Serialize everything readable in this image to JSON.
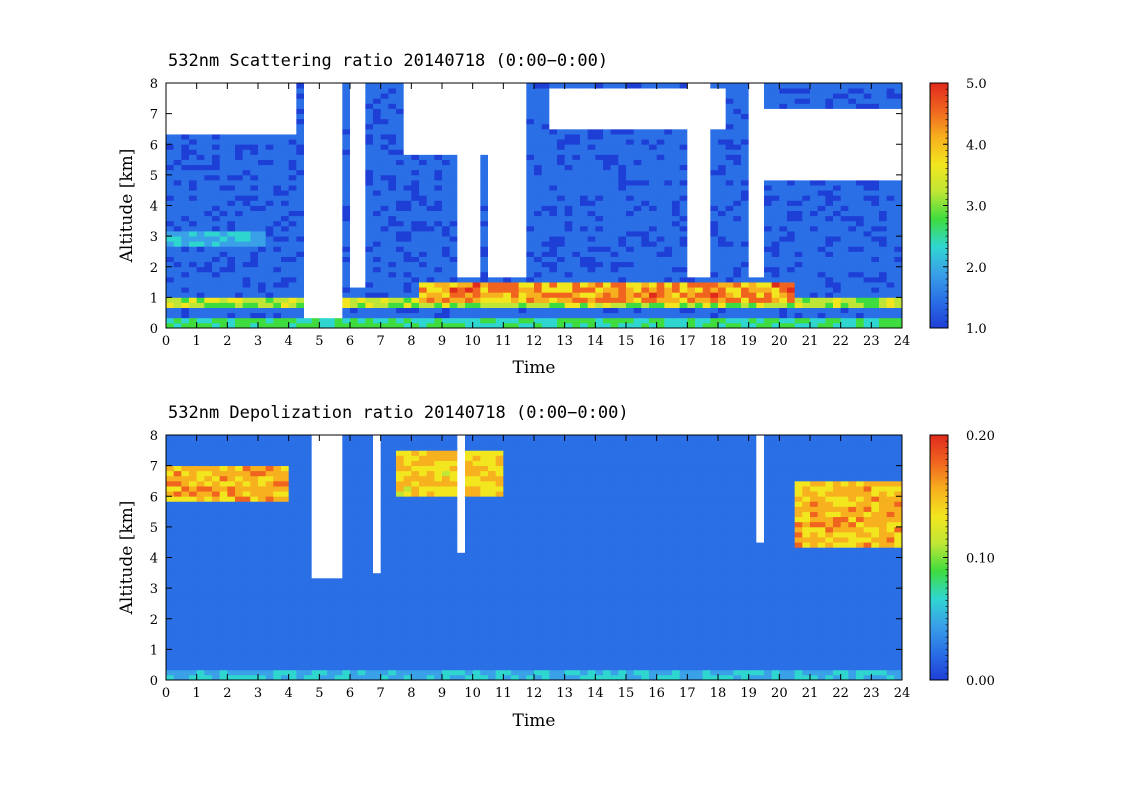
{
  "chart_data": [
    {
      "type": "heatmap",
      "title": "532nm Scattering ratio  20140718 (0:00−0:00)",
      "xlabel": "Time",
      "ylabel": "Altitude [km]",
      "xlim": [
        0,
        24
      ],
      "ylim": [
        0,
        8
      ],
      "x_ticks": [
        "0",
        "1",
        "2",
        "3",
        "4",
        "5",
        "6",
        "7",
        "8",
        "9",
        "10",
        "11",
        "12",
        "13",
        "14",
        "15",
        "16",
        "17",
        "18",
        "19",
        "20",
        "21",
        "22",
        "23",
        "24"
      ],
      "y_ticks": [
        "0",
        "1",
        "2",
        "3",
        "4",
        "5",
        "6",
        "7",
        "8"
      ],
      "colorbar": {
        "min": 1.0,
        "max": 5.0,
        "tick_labels": [
          "1.0",
          "2.0",
          "3.0",
          "4.0",
          "5.0"
        ],
        "tick_values": [
          1.0,
          2.0,
          3.0,
          4.0,
          5.0
        ]
      },
      "background_value": 1.3,
      "features": [
        {
          "kind": "layer",
          "t": [
            0,
            24
          ],
          "z": [
            0.65,
            1.0
          ],
          "value": 3.2
        },
        {
          "kind": "layer",
          "t": [
            8.2,
            20.5
          ],
          "z": [
            0.8,
            1.5
          ],
          "value": 4.2
        },
        {
          "kind": "layer",
          "t": [
            0,
            3.2
          ],
          "z": [
            2.7,
            3.1
          ],
          "value": 2.0
        },
        {
          "kind": "layer",
          "t": [
            0,
            24
          ],
          "z": [
            0.05,
            0.35
          ],
          "value": 2.6
        },
        {
          "kind": "cloud_top",
          "t": [
            0,
            4.2
          ],
          "z": [
            6.4,
            8
          ]
        },
        {
          "kind": "cloud_top",
          "t": [
            7.8,
            11.8
          ],
          "z": [
            5.6,
            8
          ]
        },
        {
          "kind": "cloud_top",
          "t": [
            12.5,
            18.3
          ],
          "z": [
            6.5,
            7.9
          ]
        },
        {
          "kind": "cloud_top",
          "t": [
            19.5,
            24
          ],
          "z": [
            4.8,
            7.2
          ]
        },
        {
          "kind": "no_signal",
          "t": [
            4.6,
            5.8
          ],
          "z": [
            0.3,
            8
          ]
        },
        {
          "kind": "no_signal",
          "t": [
            6.0,
            6.4
          ],
          "z": [
            1.3,
            8
          ]
        },
        {
          "kind": "no_signal",
          "t": [
            9.6,
            10.2
          ],
          "z": [
            1.6,
            8
          ]
        },
        {
          "kind": "no_signal",
          "t": [
            10.6,
            11.8
          ],
          "z": [
            1.6,
            8
          ]
        },
        {
          "kind": "no_signal",
          "t": [
            16.9,
            17.7
          ],
          "z": [
            1.6,
            8
          ]
        },
        {
          "kind": "no_signal",
          "t": [
            18.9,
            19.6
          ],
          "z": [
            1.6,
            8
          ]
        }
      ]
    },
    {
      "type": "heatmap",
      "title": "532nm Depolization ratio  20140718 (0:00−0:00)",
      "xlabel": "Time",
      "ylabel": "Altitude [km]",
      "xlim": [
        0,
        24
      ],
      "ylim": [
        0,
        8
      ],
      "x_ticks": [
        "0",
        "1",
        "2",
        "3",
        "4",
        "5",
        "6",
        "7",
        "8",
        "9",
        "10",
        "11",
        "12",
        "13",
        "14",
        "15",
        "16",
        "17",
        "18",
        "19",
        "20",
        "21",
        "22",
        "23",
        "24"
      ],
      "y_ticks": [
        "0",
        "1",
        "2",
        "3",
        "4",
        "5",
        "6",
        "7",
        "8"
      ],
      "colorbar": {
        "min": 0.0,
        "max": 0.2,
        "tick_labels": [
          "0.00",
          "0.10",
          "0.20"
        ],
        "tick_values": [
          0.0,
          0.1,
          0.2
        ]
      },
      "background_value": 0.025,
      "features": [
        {
          "kind": "layer",
          "t": [
            0,
            4
          ],
          "z": [
            5.8,
            7.0
          ],
          "value": 0.15
        },
        {
          "kind": "layer",
          "t": [
            7.5,
            11
          ],
          "z": [
            6.0,
            7.5
          ],
          "value": 0.14
        },
        {
          "kind": "layer",
          "t": [
            20.5,
            24
          ],
          "z": [
            4.3,
            6.5
          ],
          "value": 0.15
        },
        {
          "kind": "layer",
          "t": [
            0,
            24
          ],
          "z": [
            0.05,
            0.4
          ],
          "value": 0.055
        },
        {
          "kind": "no_signal",
          "t": [
            4.8,
            5.8
          ],
          "z": [
            3.3,
            8
          ]
        },
        {
          "kind": "no_signal",
          "t": [
            6.8,
            7.0
          ],
          "z": [
            3.5,
            8
          ]
        },
        {
          "kind": "no_signal",
          "t": [
            9.5,
            9.7
          ],
          "z": [
            4.2,
            8
          ]
        },
        {
          "kind": "no_signal",
          "t": [
            19.2,
            19.6
          ],
          "z": [
            4.5,
            8
          ]
        }
      ]
    }
  ],
  "colors": {
    "colormap": [
      "#1e3fd6",
      "#2a6fe6",
      "#3aa0e8",
      "#2fd6d0",
      "#3fdc3f",
      "#bfe636",
      "#f2e61e",
      "#f7b01e",
      "#f06420",
      "#e02a1c"
    ],
    "no_signal": "#ffffff",
    "axes": "#000000"
  }
}
